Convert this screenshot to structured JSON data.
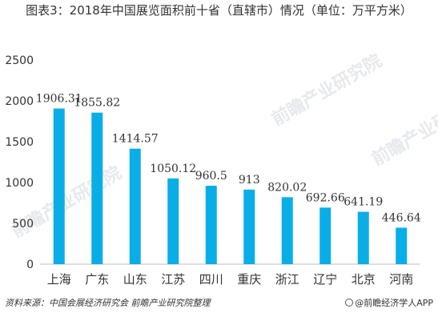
{
  "title": "图表3：2018年中国展览面积前十省（直辖市）情况（单位：万平方米）",
  "watermark": "前瞻产业研究院",
  "footer": {
    "source": "资料来源：中国会展经济研究会 前瞻产业研究院整理",
    "brand": "@前瞻经济学人APP"
  },
  "colors": {
    "bar": "#0aaee6",
    "axis": "#bfbfbf",
    "text": "#333333"
  },
  "chart_data": {
    "type": "bar",
    "title": "图表3：2018年中国展览面积前十省（直辖市）情况（单位：万平方米）",
    "categories": [
      "上海",
      "广东",
      "山东",
      "江苏",
      "四川",
      "重庆",
      "浙江",
      "辽宁",
      "北京",
      "河南"
    ],
    "values": [
      1906.31,
      1855.82,
      1414.57,
      1050.12,
      960.5,
      913,
      820.02,
      692.66,
      641.19,
      446.64
    ],
    "value_labels": [
      "1906.31",
      "1855.82",
      "1414.57",
      "1050.12",
      "960.5",
      "913",
      "820.02",
      "692.66",
      "641.19",
      "446.64"
    ],
    "ylim": [
      0,
      2500
    ],
    "yticks": [
      "0",
      "500",
      "1000",
      "1500",
      "2000",
      "2500"
    ],
    "grid": false,
    "legend": "none"
  }
}
